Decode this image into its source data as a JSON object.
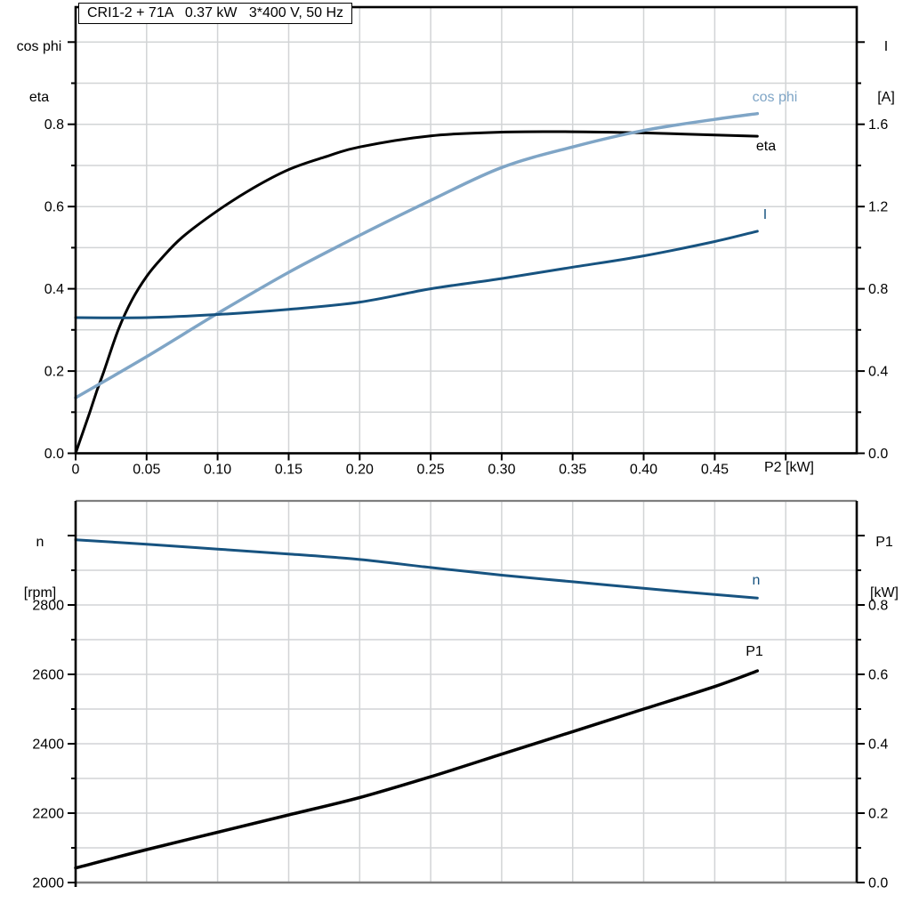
{
  "title": "CRI1-2 + 71A   0.37 kW   3*400 V, 50 Hz",
  "colors": {
    "curve_black": "#000000",
    "curve_dark_blue": "#175380",
    "curve_light_blue": "#7fa5c6",
    "grid": "#d2d4d6",
    "frame_black": "#000000",
    "frame_gray": "#7f7f7f",
    "text": "#000000",
    "background": "#ffffff"
  },
  "chart_data": [
    {
      "type": "line",
      "panel": "top",
      "title": "CRI1-2 + 71A   0.37 kW   3*400 V, 50 Hz",
      "xlabel": "P2 [kW]",
      "xlim": [
        0,
        0.55
      ],
      "x_grid_step": 0.05,
      "x_tick_labels": [
        {
          "v": 0,
          "t": "0"
        },
        {
          "v": 0.05,
          "t": "0.05"
        },
        {
          "v": 0.1,
          "t": "0.10"
        },
        {
          "v": 0.15,
          "t": "0.15"
        },
        {
          "v": 0.2,
          "t": "0.20"
        },
        {
          "v": 0.25,
          "t": "0.25"
        },
        {
          "v": 0.3,
          "t": "0.30"
        },
        {
          "v": 0.35,
          "t": "0.35"
        },
        {
          "v": 0.4,
          "t": "0.40"
        },
        {
          "v": 0.45,
          "t": "0.45"
        }
      ],
      "left_axis": {
        "title": [
          "cos phi",
          "eta"
        ],
        "lim": [
          0,
          1.085
        ],
        "minor": 0.1,
        "major": 0.2,
        "tick_labels": [
          {
            "v": 0,
            "t": "0.0"
          },
          {
            "v": 0.2,
            "t": "0.2"
          },
          {
            "v": 0.4,
            "t": "0.4"
          },
          {
            "v": 0.6,
            "t": "0.6"
          },
          {
            "v": 0.8,
            "t": "0.8"
          }
        ]
      },
      "right_axis": {
        "title": [
          "I",
          "[A]"
        ],
        "lim": [
          0,
          2.17
        ],
        "minor": 0.2,
        "major": 0.4,
        "tick_labels": [
          {
            "v": 0,
            "t": "0.0"
          },
          {
            "v": 0.4,
            "t": "0.4"
          },
          {
            "v": 0.8,
            "t": "0.8"
          },
          {
            "v": 1.2,
            "t": "1.2"
          },
          {
            "v": 1.6,
            "t": "1.6"
          }
        ]
      },
      "series": [
        {
          "name": "eta",
          "axis": "left",
          "color_key": "curve_black",
          "width": 3,
          "points": [
            [
              0,
              0
            ],
            [
              0.005,
              0.05
            ],
            [
              0.01,
              0.1
            ],
            [
              0.015,
              0.152
            ],
            [
              0.02,
              0.2
            ],
            [
              0.03,
              0.3
            ],
            [
              0.04,
              0.375
            ],
            [
              0.05,
              0.43
            ],
            [
              0.06,
              0.472
            ],
            [
              0.075,
              0.525
            ],
            [
              0.1,
              0.59
            ],
            [
              0.125,
              0.645
            ],
            [
              0.15,
              0.69
            ],
            [
              0.175,
              0.72
            ],
            [
              0.2,
              0.745
            ],
            [
              0.25,
              0.772
            ],
            [
              0.3,
              0.781
            ],
            [
              0.35,
              0.782
            ],
            [
              0.4,
              0.779
            ],
            [
              0.45,
              0.774
            ],
            [
              0.48,
              0.771
            ]
          ]
        },
        {
          "name": "cos phi",
          "axis": "left",
          "color_key": "curve_light_blue",
          "width": 3.5,
          "points": [
            [
              0,
              0.135
            ],
            [
              0.05,
              0.235
            ],
            [
              0.1,
              0.34
            ],
            [
              0.15,
              0.44
            ],
            [
              0.2,
              0.53
            ],
            [
              0.25,
              0.615
            ],
            [
              0.3,
              0.695
            ],
            [
              0.35,
              0.745
            ],
            [
              0.4,
              0.785
            ],
            [
              0.45,
              0.812
            ],
            [
              0.48,
              0.826
            ]
          ]
        },
        {
          "name": "I",
          "axis": "right",
          "color_key": "curve_dark_blue",
          "width": 3,
          "points": [
            [
              0,
              0.66
            ],
            [
              0.05,
              0.66
            ],
            [
              0.1,
              0.675
            ],
            [
              0.15,
              0.7
            ],
            [
              0.2,
              0.735
            ],
            [
              0.25,
              0.8
            ],
            [
              0.3,
              0.85
            ],
            [
              0.35,
              0.905
            ],
            [
              0.4,
              0.96
            ],
            [
              0.45,
              1.03
            ],
            [
              0.48,
              1.08
            ]
          ]
        }
      ]
    },
    {
      "type": "line",
      "panel": "bottom",
      "xlim": [
        0,
        0.55
      ],
      "x_grid_step": 0.05,
      "x_tick_labels": [],
      "left_axis": {
        "title": [
          "n",
          "[rpm]"
        ],
        "lim": [
          2000,
          3100
        ],
        "minor": 100,
        "major": 200,
        "tick_labels": [
          {
            "v": 2000,
            "t": "2000"
          },
          {
            "v": 2200,
            "t": "2200"
          },
          {
            "v": 2400,
            "t": "2400"
          },
          {
            "v": 2600,
            "t": "2600"
          },
          {
            "v": 2800,
            "t": "2800"
          }
        ]
      },
      "right_axis": {
        "title": [
          "P1",
          "[kW]"
        ],
        "lim": [
          0,
          1.1
        ],
        "minor": 0.1,
        "major": 0.2,
        "tick_labels": [
          {
            "v": 0,
            "t": "0.0"
          },
          {
            "v": 0.2,
            "t": "0.2"
          },
          {
            "v": 0.4,
            "t": "0.4"
          },
          {
            "v": 0.6,
            "t": "0.6"
          },
          {
            "v": 0.8,
            "t": "0.8"
          }
        ]
      },
      "series": [
        {
          "name": "n",
          "axis": "left",
          "color_key": "curve_dark_blue",
          "width": 3,
          "points": [
            [
              0,
              2988
            ],
            [
              0.05,
              2975
            ],
            [
              0.1,
              2961
            ],
            [
              0.15,
              2947
            ],
            [
              0.2,
              2931
            ],
            [
              0.25,
              2908
            ],
            [
              0.3,
              2886
            ],
            [
              0.35,
              2867
            ],
            [
              0.4,
              2848
            ],
            [
              0.45,
              2830
            ],
            [
              0.48,
              2820
            ]
          ]
        },
        {
          "name": "P1",
          "axis": "right",
          "color_key": "curve_black",
          "width": 3.5,
          "points": [
            [
              0,
              0.042
            ],
            [
              0.05,
              0.095
            ],
            [
              0.1,
              0.145
            ],
            [
              0.15,
              0.195
            ],
            [
              0.2,
              0.245
            ],
            [
              0.25,
              0.305
            ],
            [
              0.3,
              0.37
            ],
            [
              0.35,
              0.435
            ],
            [
              0.4,
              0.5
            ],
            [
              0.45,
              0.565
            ],
            [
              0.48,
              0.61
            ]
          ]
        }
      ]
    }
  ]
}
